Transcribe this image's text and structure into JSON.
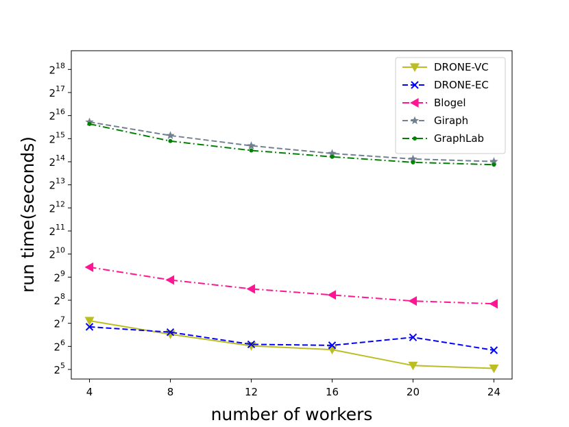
{
  "chart_data": {
    "type": "line",
    "xlabel": "number of workers",
    "ylabel": "run time(seconds)",
    "y_scale": "log2",
    "x_ticks": [
      4,
      8,
      12,
      16,
      20,
      24
    ],
    "x_tick_labels": [
      "4",
      "8",
      "12",
      "16",
      "20",
      "24"
    ],
    "y_ticks_base": "2",
    "y_ticks_exp": [
      "5",
      "6",
      "7",
      "8",
      "9",
      "10",
      "11",
      "12",
      "13",
      "14",
      "15",
      "16",
      "17",
      "18"
    ],
    "ylim": [
      24,
      460000
    ],
    "xlim": [
      3.1,
      24.9
    ],
    "legend_position": "top-right",
    "grid": false,
    "x": [
      4,
      8,
      12,
      16,
      20,
      24
    ],
    "series": [
      {
        "name": "DRONE-VC",
        "color": "#bcbd22",
        "dash": "solid",
        "marker": "triangle-down",
        "values": [
          138,
          92,
          65,
          58,
          36,
          33
        ]
      },
      {
        "name": "DRONE-EC",
        "color": "#0000ff",
        "dash": "dashed",
        "marker": "x",
        "values": [
          115,
          98,
          68,
          66,
          84,
          57
        ]
      },
      {
        "name": "Blogel",
        "color": "#ff1493",
        "dash": "dashdot",
        "marker": "triangle-left",
        "values": [
          690,
          470,
          360,
          300,
          250,
          230
        ]
      },
      {
        "name": "Giraph",
        "color": "#708090",
        "dash": "dashed",
        "marker": "star",
        "values": [
          54000,
          36000,
          26500,
          21000,
          17800,
          16500
        ]
      },
      {
        "name": "GraphLab",
        "color": "#008000",
        "dash": "dashdot",
        "marker": "dot",
        "values": [
          51000,
          30500,
          23000,
          19000,
          16100,
          15000
        ]
      }
    ]
  }
}
